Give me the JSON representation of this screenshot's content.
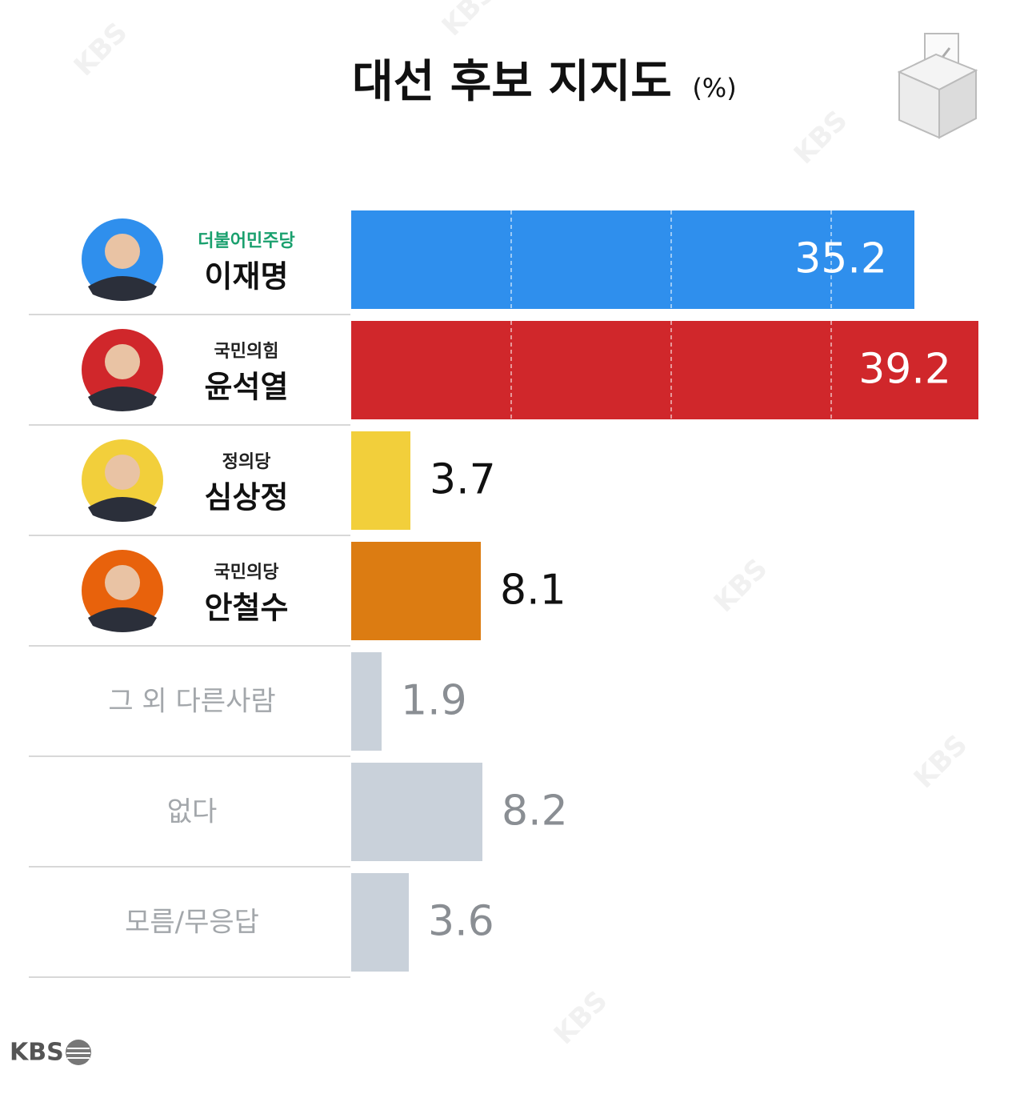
{
  "chart_data": {
    "type": "bar",
    "orientation": "horizontal",
    "title": "대선 후보 지지도",
    "title_unit": "(%)",
    "categories": [
      "이재명",
      "윤석열",
      "심상정",
      "안철수",
      "그 외 다른사람",
      "없다",
      "모름/무응답"
    ],
    "parties": [
      "더불어민주당",
      "국민의힘",
      "정의당",
      "국민의당",
      null,
      null,
      null
    ],
    "values": [
      35.2,
      39.2,
      3.7,
      8.1,
      1.9,
      8.2,
      3.6
    ],
    "colors": [
      "#2f8fed",
      "#d0272b",
      "#f2cf3b",
      "#dc7c12",
      "#c9d1da",
      "#c9d1da",
      "#c9d1da"
    ],
    "xlim": [
      0,
      40
    ],
    "xticks": [
      10,
      20,
      30
    ],
    "grid": true,
    "source": "KBS"
  }
}
